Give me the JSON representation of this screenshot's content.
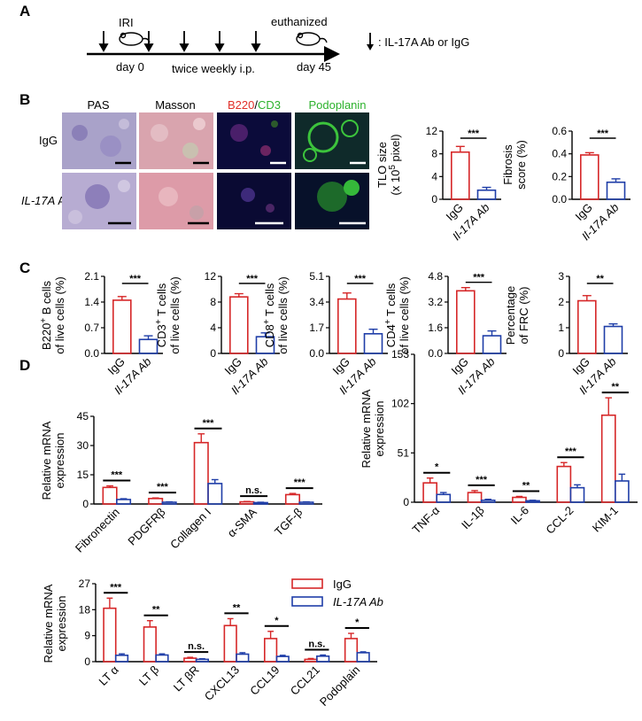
{
  "colors": {
    "igg": "#d62728",
    "ab": "#1f3ea8",
    "axis": "#000000",
    "tissue_pas": "#a9a2c9",
    "tissue_masson": "#d9a4ae",
    "fluor_bg": "#0b0b3a",
    "fluor_green": "#3cc43c"
  },
  "panelA": {
    "letter": "A",
    "iri": "IRI",
    "euthanized": "euthanized",
    "day0": "day 0",
    "schedule": "twice weekly i.p.",
    "day45": "day 45",
    "legend": ": IL-17A Ab or IgG"
  },
  "panelB": {
    "letter": "B",
    "cols": [
      "PAS",
      "Masson",
      "B220",
      "/",
      "CD3",
      "Podoplanin"
    ],
    "rows": [
      "IgG",
      "IL-17A",
      " Ab"
    ],
    "charts": [
      {
        "type": "bar",
        "ylabel1": "TLO size",
        "ylabel2": "(x 10",
        "ylabel_sup": "5",
        "ylabel3": " pixel)",
        "ticks": [
          "0",
          "4",
          "8",
          "12"
        ],
        "ylim": [
          0,
          12
        ],
        "categories": [
          "IgG",
          "Il-17A Ab"
        ],
        "values": [
          8.3,
          1.6
        ],
        "errors": [
          1.0,
          0.5
        ],
        "sig": "***"
      },
      {
        "type": "bar",
        "ylabel1": "Fibrosis",
        "ylabel2": "score (%)",
        "ticks": [
          "0.0",
          "0.2",
          "0.4",
          "0.6"
        ],
        "ylim": [
          0,
          0.6
        ],
        "categories": [
          "IgG",
          "Il-17A Ab"
        ],
        "values": [
          0.39,
          0.15
        ],
        "errors": [
          0.02,
          0.03
        ],
        "sig": "***"
      }
    ]
  },
  "panelC": {
    "letter": "C",
    "charts": [
      {
        "label_a": "B220",
        "label_sup": "+",
        "label_b": " B cells",
        "label2": "of live cells (%)",
        "ticks": [
          "0.0",
          "0.7",
          "1.4",
          "2.1"
        ],
        "ylim": [
          0,
          2.1
        ],
        "categories": [
          "IgG",
          "Il-17A Ab"
        ],
        "values": [
          1.45,
          0.38
        ],
        "errors": [
          0.1,
          0.1
        ],
        "sig": "***"
      },
      {
        "label_a": "CD3",
        "label_sup": "+",
        "label_b": " T cells",
        "label2": "of live cells (%)",
        "ticks": [
          "0",
          "4",
          "8",
          "12"
        ],
        "ylim": [
          0,
          12
        ],
        "categories": [
          "IgG",
          "Il-17A Ab"
        ],
        "values": [
          8.8,
          2.6
        ],
        "errors": [
          0.5,
          0.6
        ],
        "sig": "***"
      },
      {
        "label_a": "CD8",
        "label_sup": "+",
        "label_b": " T cells",
        "label2": "of live cells (%)",
        "ticks": [
          "0.0",
          "1.7",
          "3.4",
          "5.1"
        ],
        "ylim": [
          0,
          5.1
        ],
        "categories": [
          "IgG",
          "Il-17A Ab"
        ],
        "values": [
          3.6,
          1.3
        ],
        "errors": [
          0.4,
          0.3
        ],
        "sig": "***"
      },
      {
        "label_a": "CD4",
        "label_sup": "+",
        "label_b": " T cells",
        "label2": "of live cells (%)",
        "ticks": [
          "0.0",
          "1.6",
          "3.2",
          "4.8"
        ],
        "ylim": [
          0,
          4.8
        ],
        "categories": [
          "IgG",
          "Il-17A Ab"
        ],
        "values": [
          3.9,
          1.1
        ],
        "errors": [
          0.2,
          0.3
        ],
        "sig": "***"
      },
      {
        "label_a": "Percentage",
        "label_sup": "",
        "label_b": "",
        "label2": "of FRC (%)",
        "ticks": [
          "0",
          "1",
          "2",
          "3"
        ],
        "ylim": [
          0,
          3
        ],
        "categories": [
          "IgG",
          "Il-17A Ab"
        ],
        "values": [
          2.05,
          1.05
        ],
        "errors": [
          0.2,
          0.1
        ],
        "sig": "**"
      }
    ]
  },
  "panelD": {
    "letter": "D",
    "ylabel": [
      "Relative mRNA",
      "expression"
    ],
    "legend": [
      "IgG",
      "IL-17A Ab"
    ],
    "charts": [
      {
        "type": "bar",
        "ticks": [
          "0",
          "15",
          "30",
          "45"
        ],
        "ylim": [
          0,
          45
        ],
        "categories": [
          "Fibronectin",
          "PDGFRβ",
          "Collagen I",
          "α-SMA",
          "TGF-β"
        ],
        "series": [
          {
            "name": "IgG",
            "values": [
              8.5,
              2.8,
              31.5,
              1.1,
              4.8
            ],
            "errors": [
              0.8,
              0.3,
              4.5,
              0.2,
              0.6
            ]
          },
          {
            "name": "IL-17A Ab",
            "values": [
              2.3,
              0.9,
              10.5,
              0.7,
              0.9
            ],
            "errors": [
              0.4,
              0.2,
              2.0,
              0.2,
              0.2
            ]
          }
        ],
        "sig": [
          "***",
          "***",
          "***",
          "n.s.",
          "***"
        ]
      },
      {
        "type": "bar",
        "ticks": [
          "0",
          "51",
          "102",
          "153"
        ],
        "ylim": [
          0,
          153
        ],
        "categories": [
          "TNF-α",
          "IL-1β",
          "IL-6",
          "CCL-2",
          "KIM-1"
        ],
        "series": [
          {
            "name": "IgG",
            "values": [
              20,
              10,
              5,
              37,
              90
            ],
            "errors": [
              5,
              2,
              1,
              4,
              18
            ]
          },
          {
            "name": "IL-17A Ab",
            "values": [
              8,
              2,
              1.5,
              15,
              22
            ],
            "errors": [
              2,
              1,
              0.5,
              3,
              7
            ]
          }
        ],
        "sig": [
          "*",
          "***",
          "**",
          "***",
          "**"
        ]
      },
      {
        "type": "bar",
        "ticks": [
          "0",
          "9",
          "18",
          "27"
        ],
        "ylim": [
          0,
          27
        ],
        "categories": [
          "LT α",
          "LT β",
          "LT βR",
          "CXCL13",
          "CCL19",
          "CCL21",
          "Podoplain"
        ],
        "series": [
          {
            "name": "IgG",
            "values": [
              18.5,
              12,
              1.2,
              12.5,
              8,
              0.8,
              8
            ],
            "errors": [
              3.5,
              2.2,
              0.3,
              2.4,
              2.5,
              0.3,
              1.8
            ]
          },
          {
            "name": "IL-17A Ab",
            "values": [
              2.2,
              2.3,
              0.8,
              2.6,
              1.8,
              1.9,
              3.1
            ],
            "errors": [
              0.5,
              0.4,
              0.2,
              0.5,
              0.4,
              0.4,
              0.3
            ]
          }
        ],
        "sig": [
          "***",
          "**",
          "n.s.",
          "**",
          "*",
          "n.s.",
          "*"
        ]
      }
    ]
  }
}
